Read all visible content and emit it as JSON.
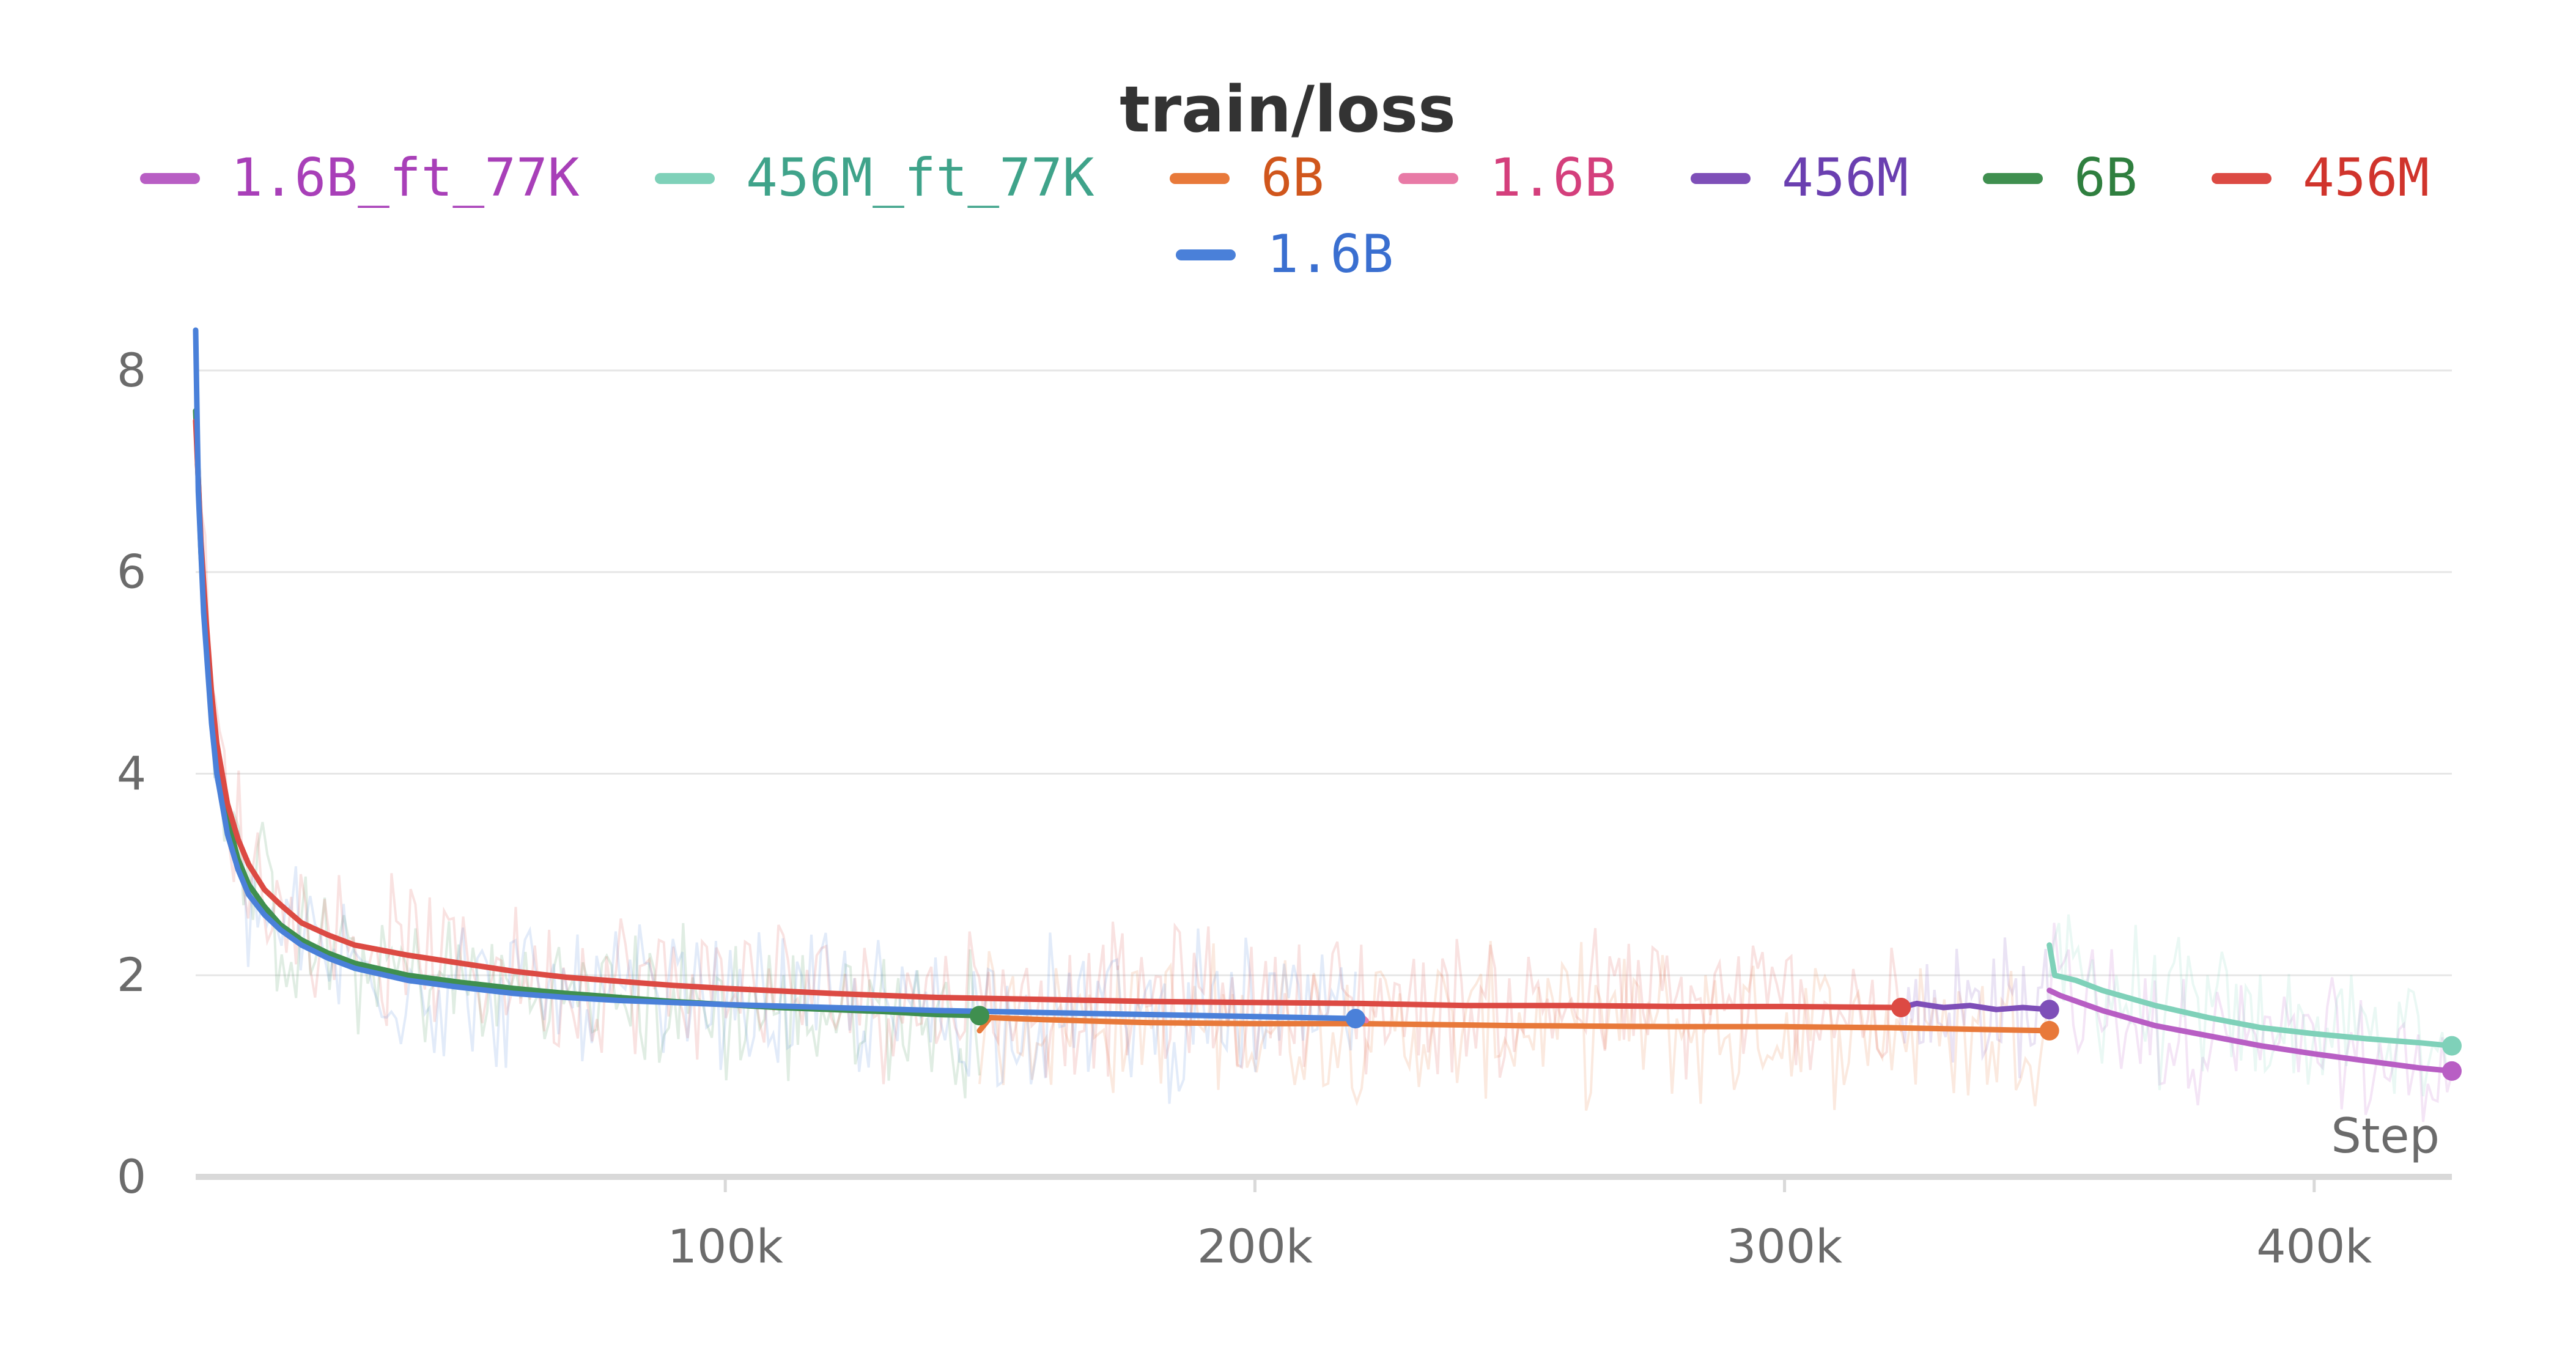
{
  "chart_data": {
    "type": "line",
    "title": "train/loss",
    "xlabel": "Step",
    "ylabel": "",
    "xlim": [
      0,
      426000
    ],
    "ylim": [
      0,
      8.4
    ],
    "x_ticks": [
      {
        "value": 100000,
        "label": "100k"
      },
      {
        "value": 200000,
        "label": "200k"
      },
      {
        "value": 300000,
        "label": "300k"
      },
      {
        "value": 400000,
        "label": "400k"
      }
    ],
    "y_ticks": [
      {
        "value": 0,
        "label": "0"
      },
      {
        "value": 2,
        "label": "2"
      },
      {
        "value": 4,
        "label": "4"
      },
      {
        "value": 6,
        "label": "6"
      },
      {
        "value": 8,
        "label": "8"
      }
    ],
    "grid": "horizontal",
    "legend_position": "top",
    "series": [
      {
        "name": "1.6B_ft_77K",
        "color": "#b85ec4",
        "text_color": "#a83fb8",
        "x": [
          350000,
          352000,
          360000,
          370000,
          380000,
          390000,
          400000,
          410000,
          420000,
          426000
        ],
        "y": [
          1.85,
          1.8,
          1.65,
          1.5,
          1.4,
          1.3,
          1.22,
          1.15,
          1.08,
          1.05
        ]
      },
      {
        "name": "456M_ft_77K",
        "color": "#7fd1b9",
        "text_color": "#3fa38a",
        "x": [
          350000,
          351000,
          355000,
          360000,
          370000,
          380000,
          390000,
          400000,
          410000,
          420000,
          426000
        ],
        "y": [
          2.3,
          2.0,
          1.95,
          1.85,
          1.7,
          1.58,
          1.48,
          1.42,
          1.37,
          1.33,
          1.3
        ]
      },
      {
        "name": "6B",
        "color": "#e8793a",
        "text_color": "#d0561c",
        "x": [
          148000,
          150000,
          160000,
          180000,
          200000,
          220000,
          250000,
          280000,
          300000,
          320000,
          350000
        ],
        "y": [
          1.45,
          1.58,
          1.56,
          1.53,
          1.52,
          1.52,
          1.5,
          1.49,
          1.49,
          1.48,
          1.45
        ]
      },
      {
        "name": "1.6B",
        "color": "#e87aa6",
        "text_color": "#d43f7c",
        "x": [
          219000,
          220000,
          221000
        ],
        "y": [
          1.5,
          1.6,
          1.55
        ]
      },
      {
        "name": "456M",
        "color": "#7e4fb8",
        "text_color": "#6a3fb0",
        "x": [
          322000,
          325000,
          330000,
          335000,
          340000,
          345000,
          350000
        ],
        "y": [
          1.68,
          1.72,
          1.68,
          1.7,
          1.66,
          1.68,
          1.66
        ]
      },
      {
        "name": "6B",
        "color": "#3f8f4f",
        "text_color": "#2f7f3f",
        "x": [
          0,
          1000,
          2000,
          3000,
          4000,
          6000,
          8000,
          10000,
          13000,
          16000,
          20000,
          25000,
          30000,
          40000,
          50000,
          60000,
          70000,
          80000,
          90000,
          100000,
          110000,
          120000,
          130000,
          140000,
          148000
        ],
        "y": [
          7.6,
          6.2,
          5.3,
          4.6,
          4.1,
          3.55,
          3.15,
          2.9,
          2.68,
          2.5,
          2.35,
          2.22,
          2.12,
          2.0,
          1.93,
          1.87,
          1.82,
          1.78,
          1.74,
          1.71,
          1.68,
          1.66,
          1.64,
          1.61,
          1.6
        ]
      },
      {
        "name": "456M",
        "color": "#dc4a43",
        "text_color": "#d0342c",
        "x": [
          0,
          1000,
          2000,
          3000,
          4000,
          6000,
          8000,
          10000,
          13000,
          16000,
          20000,
          25000,
          30000,
          40000,
          50000,
          60000,
          70000,
          80000,
          90000,
          100000,
          120000,
          140000,
          160000,
          180000,
          200000,
          220000,
          240000,
          260000,
          280000,
          300000,
          322000
        ],
        "y": [
          7.5,
          6.3,
          5.5,
          4.8,
          4.3,
          3.7,
          3.35,
          3.1,
          2.85,
          2.7,
          2.52,
          2.4,
          2.3,
          2.2,
          2.12,
          2.04,
          1.98,
          1.94,
          1.9,
          1.87,
          1.82,
          1.78,
          1.76,
          1.74,
          1.73,
          1.72,
          1.7,
          1.7,
          1.69,
          1.69,
          1.68
        ]
      },
      {
        "name": "1.6B",
        "color": "#4a80d9",
        "text_color": "#3a6fd0",
        "x": [
          0,
          500,
          1500,
          3000,
          4000,
          6000,
          8000,
          10000,
          13000,
          16000,
          20000,
          25000,
          30000,
          40000,
          50000,
          60000,
          70000,
          80000,
          90000,
          100000,
          120000,
          140000,
          160000,
          180000,
          200000,
          219000
        ],
        "y": [
          8.4,
          6.8,
          5.6,
          4.5,
          4.0,
          3.4,
          3.05,
          2.8,
          2.6,
          2.45,
          2.3,
          2.17,
          2.07,
          1.95,
          1.88,
          1.82,
          1.78,
          1.75,
          1.73,
          1.71,
          1.68,
          1.65,
          1.63,
          1.61,
          1.59,
          1.57
        ]
      }
    ],
    "endpoint_markers": [
      {
        "series": 0,
        "x": 426000,
        "y": 1.05
      },
      {
        "series": 1,
        "x": 426000,
        "y": 1.3
      },
      {
        "series": 2,
        "x": 350000,
        "y": 1.45
      },
      {
        "series": 4,
        "x": 350000,
        "y": 1.66
      },
      {
        "series": 5,
        "x": 148000,
        "y": 1.6
      },
      {
        "series": 6,
        "x": 322000,
        "y": 1.68
      },
      {
        "series": 7,
        "x": 219000,
        "y": 1.57
      }
    ]
  }
}
